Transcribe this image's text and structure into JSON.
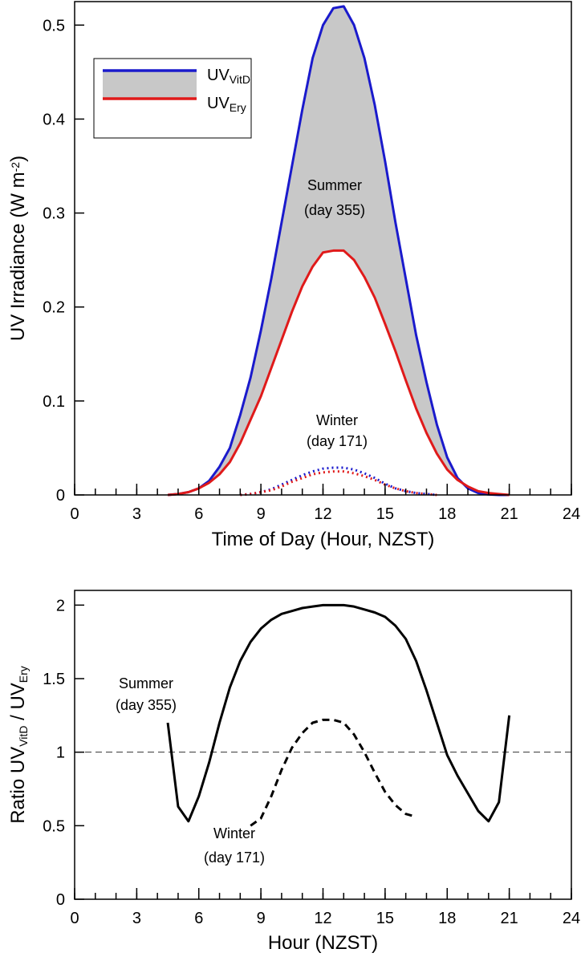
{
  "chart_data": [
    {
      "type": "line",
      "ylabel": [
        {
          "text": "UV Irradiance (W m"
        },
        {
          "text": "-2",
          "sup": true
        },
        {
          "text": ")"
        }
      ],
      "xlabel": "Time of Day (Hour, NZST)",
      "x": [
        4.5,
        5,
        5.5,
        6,
        6.5,
        7,
        7.5,
        8,
        8.5,
        9,
        9.5,
        10,
        10.5,
        11,
        11.5,
        12,
        12.5,
        13,
        13.5,
        14,
        14.5,
        15,
        15.5,
        16,
        16.5,
        17,
        17.5,
        18,
        18.5,
        19,
        19.5,
        20,
        20.5,
        21
      ],
      "series": [
        {
          "name": "UV",
          "subscript": "VitD",
          "color": "#1a1acc",
          "style": "solid",
          "values": [
            0,
            0.001,
            0.003,
            0.007,
            0.015,
            0.03,
            0.05,
            0.085,
            0.125,
            0.175,
            0.23,
            0.29,
            0.35,
            0.41,
            0.465,
            0.5,
            0.518,
            0.52,
            0.5,
            0.465,
            0.415,
            0.355,
            0.29,
            0.23,
            0.17,
            0.12,
            0.075,
            0.04,
            0.018,
            0.007,
            0.002,
            0.0005,
            0,
            0
          ]
        },
        {
          "name": "UV",
          "subscript": "Ery",
          "color": "#e01a1a",
          "style": "solid",
          "values": [
            0,
            0.001,
            0.003,
            0.007,
            0.013,
            0.022,
            0.035,
            0.055,
            0.08,
            0.105,
            0.135,
            0.165,
            0.195,
            0.222,
            0.243,
            0.258,
            0.26,
            0.26,
            0.25,
            0.232,
            0.21,
            0.182,
            0.153,
            0.122,
            0.092,
            0.066,
            0.044,
            0.027,
            0.016,
            0.009,
            0.004,
            0.002,
            0.001,
            0
          ]
        },
        {
          "color": "#1a1acc",
          "style": "dotted",
          "values": [
            null,
            null,
            null,
            null,
            null,
            null,
            null,
            0,
            0.001,
            0.003,
            0.006,
            0.011,
            0.016,
            0.021,
            0.025,
            0.028,
            0.029,
            0.029,
            0.027,
            0.023,
            0.018,
            0.012,
            0.007,
            0.004,
            0.002,
            0.001,
            0,
            null,
            null,
            null,
            null,
            null,
            null,
            null
          ]
        },
        {
          "color": "#e01a1a",
          "style": "dotted",
          "values": [
            null,
            null,
            null,
            null,
            null,
            null,
            null,
            0,
            0.001,
            0.003,
            0.005,
            0.009,
            0.014,
            0.018,
            0.022,
            0.024,
            0.025,
            0.025,
            0.023,
            0.02,
            0.016,
            0.011,
            0.007,
            0.004,
            0.002,
            0.001,
            0,
            null,
            null,
            null,
            null,
            null,
            null,
            null
          ]
        }
      ],
      "fill_between": [
        0,
        1
      ],
      "fill_color": "#c8c8c8",
      "annotations": [
        {
          "text": "Summer"
        },
        {
          "text": "(day 355)"
        },
        {
          "text": "Winter"
        },
        {
          "text": "(day 171)"
        }
      ],
      "xlim": [
        0,
        24
      ],
      "xticks": [
        0,
        3,
        6,
        9,
        12,
        15,
        18,
        21,
        24
      ],
      "xminorticks": [
        0,
        1,
        2,
        3,
        4,
        5,
        6,
        7,
        8,
        9,
        10,
        11,
        12,
        13,
        14,
        15,
        16,
        17,
        18,
        19,
        20,
        21,
        22,
        23,
        24
      ],
      "ylim": [
        0,
        0.525
      ],
      "yticks": [
        0,
        0.1,
        0.2,
        0.3,
        0.4,
        0.5
      ],
      "legend": "upper left"
    },
    {
      "type": "line",
      "ylabel": [
        {
          "text": "Ratio UV"
        },
        {
          "text": "VitD",
          "sub": true
        },
        {
          "text": " / UV"
        },
        {
          "text": "Ery",
          "sub": true
        }
      ],
      "xlabel": "Hour (NZST)",
      "x": [
        4.5,
        5,
        5.5,
        6,
        6.5,
        7,
        7.5,
        8,
        8.5,
        9,
        9.5,
        10,
        10.5,
        11,
        11.5,
        12,
        12.5,
        13,
        13.5,
        14,
        14.5,
        15,
        15.5,
        16,
        16.5,
        17,
        17.5,
        18,
        18.5,
        19,
        19.5,
        20,
        20.5,
        21
      ],
      "series": [
        {
          "color": "#000000",
          "style": "solid",
          "values": [
            1.2,
            0.63,
            0.53,
            0.7,
            0.93,
            1.2,
            1.44,
            1.62,
            1.75,
            1.84,
            1.9,
            1.94,
            1.96,
            1.98,
            1.99,
            2.0,
            2.0,
            2.0,
            1.99,
            1.97,
            1.95,
            1.92,
            1.86,
            1.77,
            1.62,
            1.42,
            1.2,
            0.98,
            0.84,
            0.72,
            0.6,
            0.53,
            0.66,
            1.25
          ]
        },
        {
          "color": "#000000",
          "style": "dashed",
          "values": [
            null,
            null,
            null,
            null,
            null,
            null,
            null,
            null,
            0.5,
            0.55,
            0.7,
            0.88,
            1.03,
            1.13,
            1.2,
            1.22,
            1.22,
            1.2,
            1.12,
            1.0,
            0.86,
            0.73,
            0.64,
            0.58,
            0.56,
            null,
            null,
            null,
            null,
            null,
            null,
            null,
            null,
            null
          ]
        }
      ],
      "ref_line": 1,
      "annotations": [
        {
          "text": "Summer"
        },
        {
          "text": "(day 355)"
        },
        {
          "text": "Winter"
        },
        {
          "text": "(day 171)"
        }
      ],
      "xlim": [
        0,
        24
      ],
      "xticks": [
        0,
        3,
        6,
        9,
        12,
        15,
        18,
        21,
        24
      ],
      "xminorticks": [
        0,
        1,
        2,
        3,
        4,
        5,
        6,
        7,
        8,
        9,
        10,
        11,
        12,
        13,
        14,
        15,
        16,
        17,
        18,
        19,
        20,
        21,
        22,
        23,
        24
      ],
      "ylim": [
        0,
        2.1
      ],
      "yticks": [
        0,
        0.5,
        1,
        1.5,
        2
      ]
    }
  ]
}
